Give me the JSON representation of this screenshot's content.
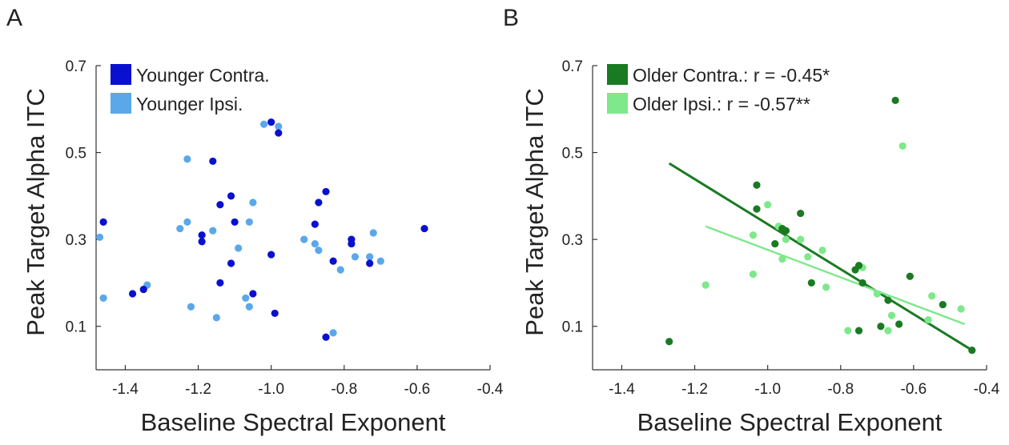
{
  "chart_data": [
    {
      "panel": "A",
      "type": "scatter",
      "xlabel": "Baseline Spectral Exponent",
      "ylabel": "Peak Target Alpha ITC",
      "xlim": [
        -1.48,
        -0.4
      ],
      "ylim": [
        0.0,
        0.7
      ],
      "xticks": [
        -1.4,
        -1.2,
        -1.0,
        -0.8,
        -0.6,
        -0.4
      ],
      "xtick_labels": [
        "-1.4",
        "-1.2",
        "-1.0",
        "-0.8",
        "-0.6",
        "-0.4"
      ],
      "yticks": [
        0.1,
        0.3,
        0.5,
        0.7
      ],
      "ytick_labels": [
        "0.1",
        "0.3",
        "0.5",
        "0.7"
      ],
      "legend_position": "top-left",
      "series": [
        {
          "name": "Younger Contra.",
          "color": "#0a10d0",
          "points": [
            [
              -1.46,
              0.34
            ],
            [
              -1.38,
              0.175
            ],
            [
              -1.35,
              0.185
            ],
            [
              -1.16,
              0.48
            ],
            [
              -1.14,
              0.38
            ],
            [
              -1.11,
              0.4
            ],
            [
              -1.1,
              0.34
            ],
            [
              -1.19,
              0.295
            ],
            [
              -1.19,
              0.31
            ],
            [
              -1.14,
              0.2
            ],
            [
              -1.11,
              0.245
            ],
            [
              -1.05,
              0.175
            ],
            [
              -1.0,
              0.265
            ],
            [
              -0.99,
              0.13
            ],
            [
              -1.0,
              0.57
            ],
            [
              -0.98,
              0.545
            ],
            [
              -0.88,
              0.335
            ],
            [
              -0.87,
              0.385
            ],
            [
              -0.85,
              0.41
            ],
            [
              -0.83,
              0.25
            ],
            [
              -0.78,
              0.3
            ],
            [
              -0.78,
              0.29
            ],
            [
              -0.73,
              0.245
            ],
            [
              -0.85,
              0.075
            ],
            [
              -0.58,
              0.325
            ]
          ]
        },
        {
          "name": "Younger Ipsi.",
          "color": "#5aa8ea",
          "points": [
            [
              -1.47,
              0.305
            ],
            [
              -1.46,
              0.165
            ],
            [
              -1.34,
              0.195
            ],
            [
              -1.23,
              0.485
            ],
            [
              -1.23,
              0.34
            ],
            [
              -1.25,
              0.325
            ],
            [
              -1.22,
              0.145
            ],
            [
              -1.16,
              0.32
            ],
            [
              -1.15,
              0.12
            ],
            [
              -1.09,
              0.28
            ],
            [
              -1.06,
              0.34
            ],
            [
              -1.05,
              0.385
            ],
            [
              -1.07,
              0.165
            ],
            [
              -1.06,
              0.145
            ],
            [
              -1.02,
              0.565
            ],
            [
              -0.98,
              0.56
            ],
            [
              -0.91,
              0.3
            ],
            [
              -0.88,
              0.29
            ],
            [
              -0.87,
              0.275
            ],
            [
              -0.83,
              0.085
            ],
            [
              -0.81,
              0.23
            ],
            [
              -0.77,
              0.26
            ],
            [
              -0.73,
              0.26
            ],
            [
              -0.72,
              0.315
            ],
            [
              -0.7,
              0.25
            ]
          ]
        }
      ]
    },
    {
      "panel": "B",
      "type": "scatter",
      "xlabel": "Baseline Spectral Exponent",
      "ylabel": "Peak Target Alpha ITC",
      "xlim": [
        -1.48,
        -0.4
      ],
      "ylim": [
        0.0,
        0.7
      ],
      "xticks": [
        -1.4,
        -1.2,
        -1.0,
        -0.8,
        -0.6,
        -0.4
      ],
      "xtick_labels": [
        "-1.4",
        "-1.2",
        "-1.0",
        "-0.8",
        "-0.6",
        "-0.4"
      ],
      "yticks": [
        0.1,
        0.3,
        0.5,
        0.7
      ],
      "ytick_labels": [
        "0.1",
        "0.3",
        "0.5",
        "0.7"
      ],
      "legend_position": "top-left",
      "series": [
        {
          "name": "Older Contra.: r = -0.45*",
          "color": "#1a7a22",
          "points": [
            [
              -1.27,
              0.065
            ],
            [
              -1.03,
              0.425
            ],
            [
              -1.03,
              0.37
            ],
            [
              -0.98,
              0.29
            ],
            [
              -0.96,
              0.325
            ],
            [
              -0.95,
              0.32
            ],
            [
              -0.91,
              0.36
            ],
            [
              -0.88,
              0.2
            ],
            [
              -0.76,
              0.23
            ],
            [
              -0.75,
              0.24
            ],
            [
              -0.74,
              0.2
            ],
            [
              -0.75,
              0.09
            ],
            [
              -0.69,
              0.1
            ],
            [
              -0.67,
              0.16
            ],
            [
              -0.65,
              0.62
            ],
            [
              -0.64,
              0.105
            ],
            [
              -0.61,
              0.215
            ],
            [
              -0.52,
              0.15
            ],
            [
              -0.44,
              0.045
            ]
          ],
          "fit": [
            [
              -1.27,
              0.475
            ],
            [
              -0.44,
              0.045
            ]
          ]
        },
        {
          "name": "Older Ipsi.: r = -0.57**",
          "color": "#7ee88a",
          "points": [
            [
              -1.17,
              0.195
            ],
            [
              -1.04,
              0.31
            ],
            [
              -1.04,
              0.22
            ],
            [
              -1.0,
              0.38
            ],
            [
              -0.97,
              0.33
            ],
            [
              -0.96,
              0.255
            ],
            [
              -0.95,
              0.3
            ],
            [
              -0.91,
              0.3
            ],
            [
              -0.89,
              0.26
            ],
            [
              -0.85,
              0.275
            ],
            [
              -0.84,
              0.19
            ],
            [
              -0.78,
              0.09
            ],
            [
              -0.74,
              0.235
            ],
            [
              -0.7,
              0.175
            ],
            [
              -0.66,
              0.125
            ],
            [
              -0.67,
              0.09
            ],
            [
              -0.63,
              0.515
            ],
            [
              -0.55,
              0.17
            ],
            [
              -0.47,
              0.14
            ],
            [
              -0.56,
              0.115
            ]
          ],
          "fit": [
            [
              -1.17,
              0.33
            ],
            [
              -0.46,
              0.105
            ]
          ]
        }
      ]
    }
  ]
}
